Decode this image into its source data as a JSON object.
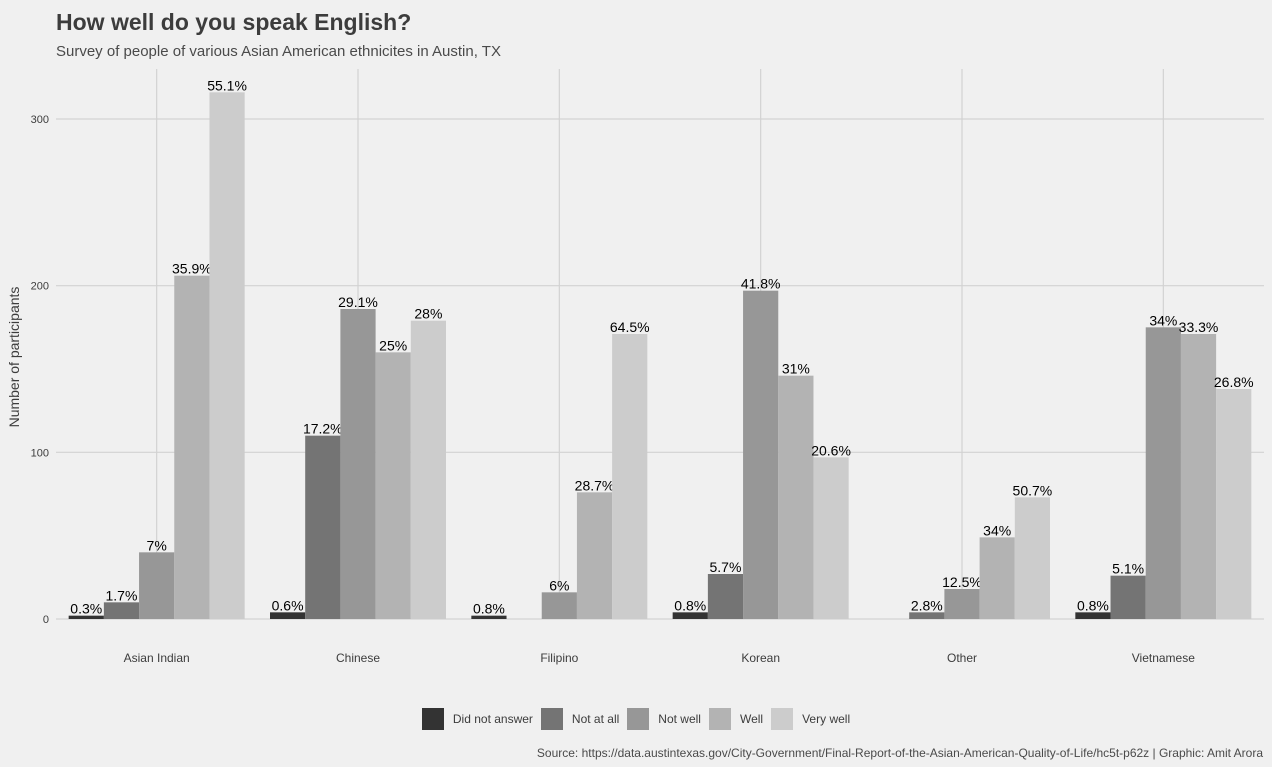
{
  "title": "How well do you speak English?",
  "subtitle": "Survey of people of various Asian American ethnicites in Austin, TX",
  "caption": "Source: https://data.austintexas.gov/City-Government/Final-Report-of-the-Asian-American-Quality-of-Life/hc5t-p62z | Graphic: Amit Arora",
  "chart_data": {
    "type": "bar",
    "title": "How well do you speak English?",
    "subtitle": "Survey of people of various Asian American ethnicites in Austin, TX",
    "xlabel": "",
    "ylabel": "Number of participants",
    "ylim": [
      0,
      330
    ],
    "yticks": [
      0,
      100,
      200,
      300
    ],
    "grid": true,
    "legend_position": "bottom",
    "categories": [
      "Asian Indian",
      "Chinese",
      "Filipino",
      "Korean",
      "Other",
      "Vietnamese"
    ],
    "series": [
      {
        "name": "Did not answer",
        "color": "#333333",
        "values": [
          2,
          4,
          2,
          4,
          0,
          4
        ],
        "labels": [
          "0.3%",
          "0.6%",
          "0.8%",
          "0.8%",
          "",
          "0.8%"
        ]
      },
      {
        "name": "Not at all",
        "color": "#747474",
        "values": [
          10,
          110,
          0,
          27,
          4,
          26
        ],
        "labels": [
          "1.7%",
          "17.2%",
          "",
          "5.7%",
          "2.8%",
          "5.1%"
        ]
      },
      {
        "name": "Not well",
        "color": "#979797",
        "values": [
          40,
          186,
          16,
          197,
          18,
          175
        ],
        "labels": [
          "7%",
          "29.1%",
          "6%",
          "41.8%",
          "12.5%",
          "34%"
        ]
      },
      {
        "name": "Well",
        "color": "#b3b3b3",
        "values": [
          206,
          160,
          76,
          146,
          49,
          171
        ],
        "labels": [
          "35.9%",
          "25%",
          "28.7%",
          "31%",
          "34%",
          "33.3%"
        ]
      },
      {
        "name": "Very well",
        "color": "#cccccc",
        "values": [
          316,
          179,
          171,
          97,
          73,
          138
        ],
        "labels": [
          "55.1%",
          "28%",
          "64.5%",
          "20.6%",
          "50.7%",
          "26.8%"
        ]
      }
    ]
  }
}
